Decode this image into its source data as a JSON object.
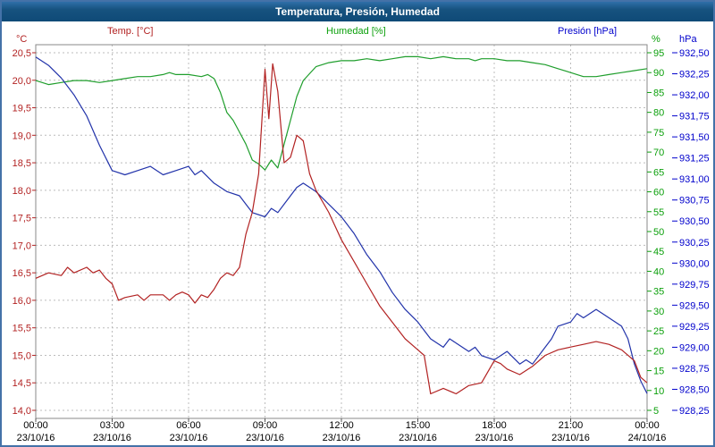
{
  "window": {
    "title": "Temperatura, Presión, Humedad"
  },
  "legend": {
    "temp": "Temp. [°C]",
    "humidity": "Humedad [%]",
    "pressure": "Presión [hPa]"
  },
  "chart_data": {
    "type": "line",
    "title": "Temperatura, Presión, Humedad",
    "grid": "dashed",
    "x_axis": {
      "range_hours": [
        0,
        24
      ],
      "tick_hours": [
        0,
        3,
        6,
        9,
        12,
        15,
        18,
        21,
        24
      ],
      "tick_times": [
        "00:00",
        "03:00",
        "06:00",
        "09:00",
        "12:00",
        "15:00",
        "18:00",
        "21:00",
        "00:00"
      ],
      "tick_dates": [
        "23/10/16",
        "23/10/16",
        "23/10/16",
        "23/10/16",
        "23/10/16",
        "23/10/16",
        "23/10/16",
        "23/10/16",
        "24/10/16"
      ]
    },
    "y_axes": {
      "temp": {
        "label": "°C",
        "color": "#b22222",
        "decimals": 1,
        "ticks": [
          20.5,
          20,
          19.5,
          19,
          18.5,
          18,
          17.5,
          17,
          16.5,
          16,
          15.5,
          15,
          14.5,
          14
        ]
      },
      "humidity": {
        "label": "%",
        "color": "#0ca00c",
        "decimals": 0,
        "ticks": [
          95,
          90,
          85,
          80,
          75,
          70,
          65,
          60,
          55,
          50,
          45,
          40,
          35,
          30,
          25,
          20,
          15,
          10,
          5
        ]
      },
      "pressure": {
        "label": "hPa",
        "color": "#0000cc",
        "decimals": 2,
        "ticks": [
          932.5,
          932.25,
          932,
          931.75,
          931.5,
          931.25,
          931,
          930.75,
          930.5,
          930.25,
          930,
          929.75,
          929.5,
          929.25,
          929,
          928.75,
          928.5,
          928.25
        ]
      }
    },
    "series": [
      {
        "name": "Humedad [%]",
        "key": "humidity",
        "axis": "humidity",
        "color": "#1f9e2c",
        "x": [
          0,
          0.5,
          1,
          1.5,
          2,
          2.5,
          3,
          3.5,
          4,
          4.5,
          5,
          5.25,
          5.5,
          6,
          6.5,
          6.75,
          7,
          7.25,
          7.5,
          7.75,
          8,
          8.25,
          8.5,
          8.75,
          9,
          9.25,
          9.5,
          9.75,
          10,
          10.25,
          10.5,
          11,
          11.5,
          12,
          12.5,
          13,
          13.5,
          14,
          14.5,
          15,
          15.5,
          16,
          16.5,
          17,
          17.25,
          17.5,
          18,
          18.5,
          19,
          19.5,
          20,
          20.5,
          21,
          21.25,
          21.5,
          22,
          22.5,
          23,
          23.5,
          24
        ],
        "v": [
          88,
          87,
          87.5,
          88,
          88,
          87.5,
          88,
          88.5,
          89,
          89,
          89.5,
          90,
          89.5,
          89.5,
          89,
          89.5,
          88.5,
          85,
          80,
          78,
          75,
          72,
          68,
          67,
          65.5,
          68,
          66,
          72,
          78,
          84,
          88,
          91.5,
          92.5,
          93,
          93,
          93.5,
          93,
          93.5,
          94,
          94,
          93.5,
          94,
          93.5,
          93.5,
          93,
          93.5,
          93.5,
          93,
          93,
          92.5,
          92,
          91,
          90,
          89.5,
          89,
          89,
          89.5,
          90,
          90.5,
          91
        ]
      },
      {
        "name": "Presión [hPa]",
        "key": "pressure",
        "axis": "pressure",
        "color": "#2233aa",
        "x": [
          0,
          0.5,
          1,
          1.5,
          2,
          2.5,
          3,
          3.5,
          4,
          4.5,
          5,
          5.5,
          6,
          6.25,
          6.5,
          7,
          7.5,
          8,
          8.25,
          8.5,
          9,
          9.25,
          9.5,
          9.75,
          10,
          10.25,
          10.5,
          11,
          11.5,
          12,
          12.5,
          13,
          13.5,
          14,
          14.5,
          15,
          15.25,
          15.5,
          16,
          16.25,
          16.5,
          17,
          17.25,
          17.5,
          18,
          18.5,
          19,
          19.25,
          19.5,
          20,
          20.25,
          20.5,
          21,
          21.25,
          21.5,
          22,
          22.25,
          22.5,
          23,
          23.25,
          23.5,
          23.75,
          24
        ],
        "v": [
          932.45,
          932.35,
          932.2,
          932.0,
          931.75,
          931.4,
          931.1,
          931.05,
          931.1,
          931.15,
          931.05,
          931.1,
          931.15,
          931.05,
          931.1,
          930.95,
          930.85,
          930.8,
          930.7,
          930.6,
          930.55,
          930.65,
          930.6,
          930.7,
          930.8,
          930.9,
          930.95,
          930.85,
          930.7,
          930.55,
          930.35,
          930.1,
          929.9,
          929.65,
          929.45,
          929.3,
          929.2,
          929.1,
          929.0,
          929.1,
          929.05,
          928.95,
          929.0,
          928.9,
          928.85,
          928.95,
          928.8,
          928.85,
          928.8,
          929.0,
          929.1,
          929.25,
          929.3,
          929.4,
          929.35,
          929.45,
          929.4,
          929.35,
          929.25,
          929.1,
          928.8,
          928.6,
          928.45
        ]
      },
      {
        "name": "Temp. [°C]",
        "key": "temp",
        "axis": "temp",
        "color": "#b22222",
        "x": [
          0,
          0.5,
          1,
          1.25,
          1.5,
          2,
          2.25,
          2.5,
          2.75,
          3,
          3.25,
          3.5,
          4,
          4.25,
          4.5,
          5,
          5.25,
          5.5,
          5.75,
          6,
          6.25,
          6.5,
          6.75,
          7,
          7.25,
          7.5,
          7.75,
          8,
          8.25,
          8.5,
          8.75,
          9,
          9.15,
          9.3,
          9.5,
          9.75,
          10,
          10.25,
          10.5,
          10.75,
          11,
          11.5,
          12,
          12.5,
          13,
          13.5,
          14,
          14.5,
          15,
          15.25,
          15.5,
          16,
          16.5,
          17,
          17.5,
          18,
          18.25,
          18.5,
          19,
          19.5,
          20,
          20.5,
          21,
          21.5,
          22,
          22.5,
          23,
          23.5,
          23.75,
          24
        ],
        "v": [
          16.4,
          16.5,
          16.45,
          16.6,
          16.5,
          16.6,
          16.5,
          16.55,
          16.4,
          16.3,
          16.0,
          16.05,
          16.1,
          16.0,
          16.1,
          16.1,
          16.0,
          16.1,
          16.15,
          16.1,
          15.95,
          16.1,
          16.05,
          16.2,
          16.4,
          16.5,
          16.45,
          16.6,
          17.2,
          17.6,
          18.3,
          20.2,
          19.3,
          20.3,
          19.8,
          18.5,
          18.6,
          19.0,
          18.9,
          18.3,
          18.0,
          17.6,
          17.1,
          16.7,
          16.3,
          15.9,
          15.6,
          15.3,
          15.1,
          15.0,
          14.3,
          14.4,
          14.3,
          14.45,
          14.5,
          14.9,
          14.85,
          14.75,
          14.65,
          14.8,
          15.0,
          15.1,
          15.15,
          15.2,
          15.25,
          15.2,
          15.1,
          14.9,
          14.6,
          14.5
        ]
      }
    ]
  }
}
